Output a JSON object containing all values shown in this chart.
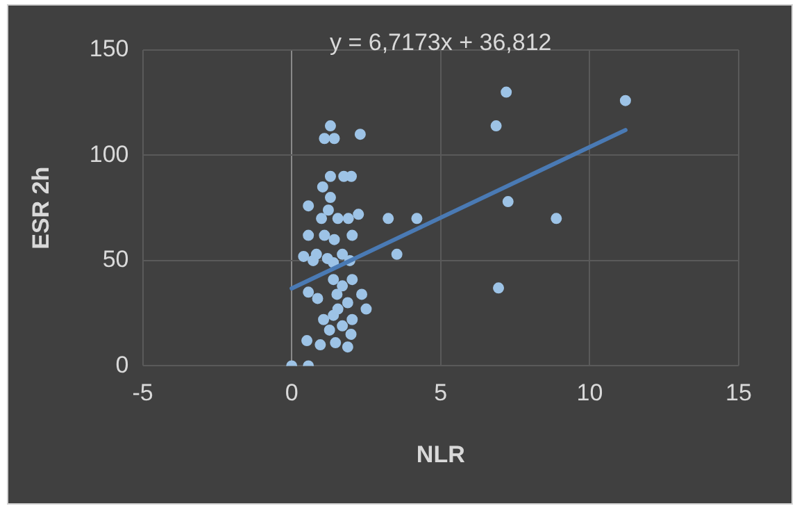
{
  "chart_data": {
    "type": "scatter",
    "xlabel": "NLR",
    "ylabel": "ESR 2h",
    "annotations": [
      "y = 6,7173x + 36,812"
    ],
    "xlim": [
      -5,
      15
    ],
    "xticks": [
      -5,
      0,
      5,
      10,
      15
    ],
    "ylim": [
      0,
      150
    ],
    "yticks": [
      0,
      50,
      100,
      150
    ],
    "grid": true,
    "legend": false,
    "marker": "circle",
    "series": [
      {
        "color": "#9dc3e6",
        "x": [
          0,
          0.56,
          1.3,
          1.1,
          1.43,
          2.3,
          1.04,
          1.3,
          1.75,
          2.0,
          1.3,
          0.56,
          1.0,
          1.23,
          1.55,
          1.9,
          2.24,
          1.1,
          0.56,
          1.43,
          2.03,
          0.4,
          0.83,
          0.72,
          1.2,
          1.7,
          1.4,
          1.95,
          0.56,
          0.87,
          1.4,
          1.7,
          2.03,
          2.35,
          1.52,
          2.5,
          1.88,
          1.07,
          1.4,
          1.55,
          2.03,
          1.27,
          1.7,
          1.99,
          0.51,
          0.96,
          1.47,
          1.88,
          3.24,
          4.2,
          3.53,
          7.2,
          6.86,
          7.26,
          8.88,
          6.94,
          11.2
        ],
        "values": [
          0,
          0,
          114,
          108,
          108,
          110,
          85,
          90,
          90,
          90,
          80,
          76,
          70,
          74,
          70,
          70,
          72,
          62,
          62,
          60,
          62,
          52,
          53,
          50,
          51,
          53,
          49,
          50,
          35,
          32,
          41,
          38,
          41,
          34,
          34,
          27,
          30,
          22,
          24,
          27,
          22,
          17,
          19,
          15,
          12,
          10,
          11,
          9,
          70,
          70,
          53,
          130,
          114,
          78,
          70,
          37,
          126
        ]
      },
      {
        "type": "line",
        "color": "#4a7ab4",
        "x": [
          0,
          11.2
        ],
        "values": [
          36.8,
          112
        ],
        "marker": "none"
      }
    ]
  }
}
